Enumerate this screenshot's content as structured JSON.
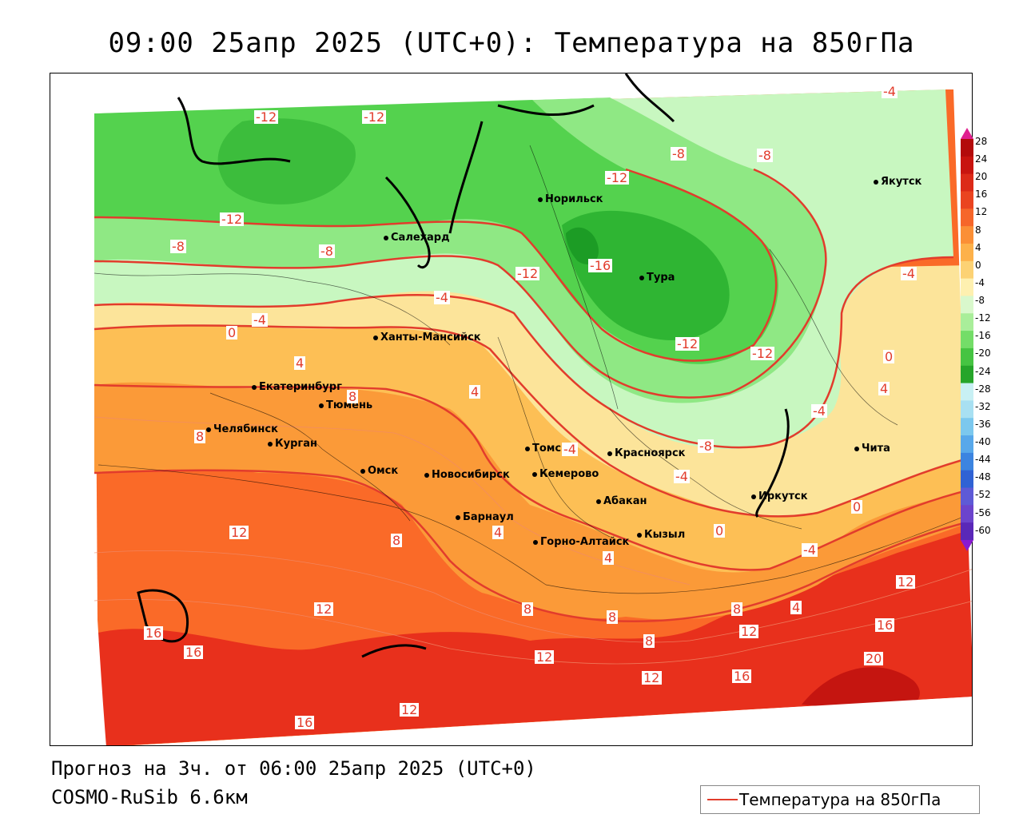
{
  "title": "09:00 25апр 2025 (UTC+0): Температура на 850гПа",
  "footer": {
    "forecast": "Прогноз на 3ч. от 06:00 25апр 2025 (UTC+0)",
    "model": "COSMO-RuSib 6.6км"
  },
  "legend": {
    "label": "Температура на 850гПа",
    "color": "#e23c2c"
  },
  "colorbar": {
    "labels": [
      "28",
      "24",
      "20",
      "16",
      "12",
      "8",
      "4",
      "0",
      "-4",
      "-8",
      "-12",
      "-16",
      "-20",
      "-24",
      "-28",
      "-32",
      "-36",
      "-40",
      "-44",
      "-48",
      "-52",
      "-56",
      "-60"
    ]
  },
  "cities": [
    {
      "name": "Якутск"
    },
    {
      "name": "Норильск"
    },
    {
      "name": "Салехард"
    },
    {
      "name": "Тура"
    },
    {
      "name": "Ханты-Мансийск"
    },
    {
      "name": "Екатеринбург"
    },
    {
      "name": "Тюмень"
    },
    {
      "name": "Челябинск"
    },
    {
      "name": "Курган"
    },
    {
      "name": "Омск"
    },
    {
      "name": "Новосибирск"
    },
    {
      "name": "Томск"
    },
    {
      "name": "Кемерово"
    },
    {
      "name": "Красноярск"
    },
    {
      "name": "Иркутск"
    },
    {
      "name": "Чита"
    },
    {
      "name": "Абакан"
    },
    {
      "name": "Барнаул"
    },
    {
      "name": "Горно-Алтайск"
    },
    {
      "name": "Кызыл"
    }
  ],
  "isolines": [
    "-12",
    "-12",
    "-4",
    "-12",
    "-8",
    "-8",
    "-8",
    "-8",
    "-12",
    "-16",
    "-12",
    "-4",
    "-4",
    "-4",
    "0",
    "-12",
    "-12",
    "0",
    "4",
    "4",
    "4",
    "8",
    "8",
    "-4",
    "-4",
    "-8",
    "-4",
    "0",
    "0",
    "12",
    "8",
    "4",
    "-4",
    "4",
    "12",
    "12",
    "8",
    "8",
    "4",
    "8",
    "12",
    "16",
    "16",
    "12",
    "16",
    "12",
    "8",
    "12",
    "16",
    "20",
    "12",
    "16"
  ]
}
